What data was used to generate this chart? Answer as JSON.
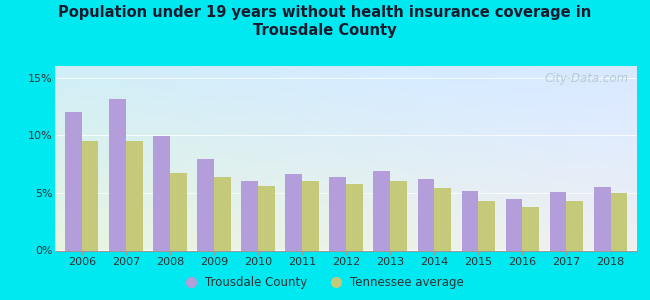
{
  "title": "Population under 19 years without health insurance coverage in\nTrousdale County",
  "years": [
    2006,
    2007,
    2008,
    2009,
    2010,
    2011,
    2012,
    2013,
    2014,
    2015,
    2016,
    2017,
    2018
  ],
  "trousdale": [
    12.0,
    13.1,
    9.9,
    7.9,
    6.0,
    6.6,
    6.4,
    6.9,
    6.2,
    5.2,
    4.5,
    5.1,
    5.5
  ],
  "tennessee": [
    9.5,
    9.5,
    6.7,
    6.4,
    5.6,
    6.0,
    5.8,
    6.0,
    5.4,
    4.3,
    3.8,
    4.3,
    5.0
  ],
  "trousdale_color": "#b39ddb",
  "tennessee_color": "#c5c97a",
  "background_outer": "#00e8f0",
  "background_inner_topleft": "#d8f0e8",
  "background_inner_topright": "#cce8f0",
  "background_inner_bottom": "#f0f8e8",
  "ylim": [
    0,
    16
  ],
  "yticks": [
    0,
    5,
    10,
    15
  ],
  "ytick_labels": [
    "0%",
    "5%",
    "10%",
    "15%"
  ],
  "legend_trousdale": "Trousdale County",
  "legend_tennessee": "Tennessee average",
  "watermark": "City-Data.com",
  "bar_width": 0.38,
  "title_color": "#1a1a2e",
  "tick_color": "#333333"
}
